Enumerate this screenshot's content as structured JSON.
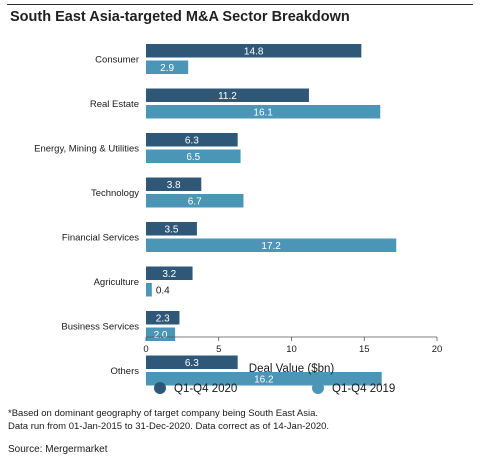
{
  "title": "South East Asia-targeted M&A Sector Breakdown",
  "footnote_line1": "*Based on dominant geography of target company being South East Asia.",
  "footnote_line2": "Data run from 01-Jan-2015 to 31-Dec-2020. Data correct as of 14-Jan-2020.",
  "source": "Source: Mergermarket",
  "chart_data": {
    "type": "bar",
    "orientation": "horizontal",
    "categories": [
      "Consumer",
      "Real Estate",
      "Energy, Mining & Utilities",
      "Technology",
      "Financial Services",
      "Agriculture",
      "Business Services",
      "Others"
    ],
    "series": [
      {
        "name": "Q1-Q4 2020",
        "color": "#2f5878",
        "values": [
          14.8,
          11.2,
          6.3,
          3.8,
          3.5,
          3.2,
          2.3,
          6.3
        ],
        "labels": [
          "14.8",
          "11.2",
          "6.3",
          "3.8",
          "3.5",
          "3.2",
          "2.3",
          "6.3"
        ]
      },
      {
        "name": "Q1-Q4 2019",
        "color": "#4b95b7",
        "values": [
          2.9,
          16.1,
          6.5,
          6.7,
          17.2,
          0.4,
          2.0,
          16.2
        ],
        "labels": [
          "2.9",
          "16.1",
          "6.5",
          "6.7",
          "17.2",
          "0.4",
          "2.0",
          "16.2"
        ]
      }
    ],
    "xlabel": "Deal Value ($bn)",
    "xlim": [
      0,
      20
    ],
    "xticks": [
      0,
      5,
      10,
      15,
      20
    ],
    "legend_position": "bottom",
    "grid": false
  }
}
